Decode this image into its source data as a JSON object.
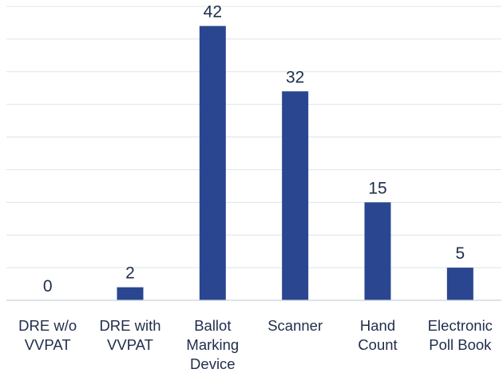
{
  "chart_data": {
    "type": "bar",
    "categories": [
      [
        "DRE w/o",
        "VVPAT"
      ],
      [
        "DRE with",
        "VVPAT"
      ],
      [
        "Ballot",
        "Marking",
        "Device"
      ],
      [
        "Scanner"
      ],
      [
        "Hand",
        "Count"
      ],
      [
        "Electronic",
        "Poll Book"
      ]
    ],
    "values": [
      0,
      2,
      42,
      32,
      15,
      5
    ],
    "data_labels": [
      "0",
      "2",
      "42",
      "32",
      "15",
      "5"
    ],
    "title": "",
    "xlabel": "",
    "ylabel": "",
    "ylim": [
      0,
      45
    ],
    "grid": true,
    "legend": "none",
    "colors": {
      "bar": "#2a4690",
      "grid": "#dbe4ee",
      "text": "#1f2d4a"
    }
  }
}
